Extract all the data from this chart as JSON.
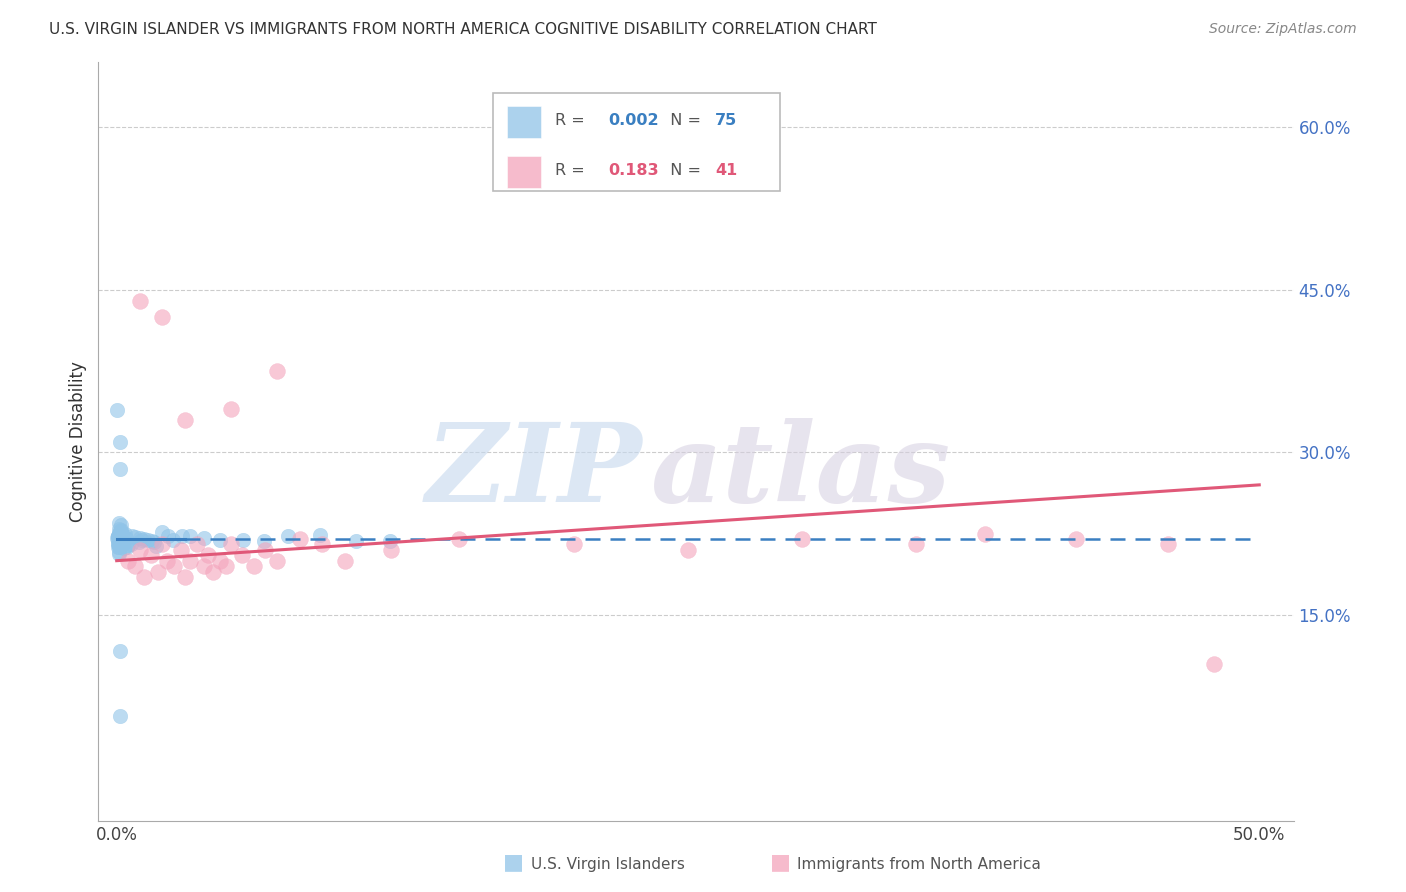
{
  "title": "U.S. VIRGIN ISLANDER VS IMMIGRANTS FROM NORTH AMERICA COGNITIVE DISABILITY CORRELATION CHART",
  "source": "Source: ZipAtlas.com",
  "ylabel": "Cognitive Disability",
  "blue_color": "#90c4e8",
  "pink_color": "#f4a4bc",
  "blue_line_color": "#3a7fc1",
  "pink_line_color": "#e05878",
  "blue_N": 75,
  "pink_N": 41,
  "blue_R": "0.002",
  "pink_R": "0.183",
  "blue_scatter_x": [
    0.001,
    0.001,
    0.001,
    0.001,
    0.001,
    0.001,
    0.001,
    0.001,
    0.001,
    0.001,
    0.001,
    0.001,
    0.001,
    0.001,
    0.001,
    0.001,
    0.001,
    0.001,
    0.001,
    0.001,
    0.001,
    0.001,
    0.001,
    0.001,
    0.001,
    0.001,
    0.001,
    0.001,
    0.001,
    0.001,
    0.002,
    0.002,
    0.002,
    0.002,
    0.002,
    0.002,
    0.002,
    0.002,
    0.003,
    0.003,
    0.003,
    0.004,
    0.004,
    0.004,
    0.005,
    0.005,
    0.006,
    0.007,
    0.008,
    0.009,
    0.01,
    0.011,
    0.012,
    0.013,
    0.015,
    0.017,
    0.018,
    0.02,
    0.022,
    0.025,
    0.028,
    0.032,
    0.038,
    0.045,
    0.055,
    0.065,
    0.075,
    0.09,
    0.105,
    0.12,
    0.001,
    0.001,
    0.001,
    0.001,
    0.001
  ],
  "blue_scatter_y": [
    0.22,
    0.222,
    0.218,
    0.225,
    0.215,
    0.228,
    0.21,
    0.232,
    0.216,
    0.224,
    0.219,
    0.226,
    0.212,
    0.23,
    0.217,
    0.223,
    0.214,
    0.221,
    0.227,
    0.213,
    0.218,
    0.225,
    0.22,
    0.215,
    0.222,
    0.219,
    0.216,
    0.224,
    0.211,
    0.228,
    0.221,
    0.217,
    0.223,
    0.214,
    0.22,
    0.226,
    0.218,
    0.222,
    0.219,
    0.215,
    0.224,
    0.22,
    0.217,
    0.223,
    0.218,
    0.221,
    0.219,
    0.222,
    0.22,
    0.218,
    0.221,
    0.219,
    0.222,
    0.22,
    0.218,
    0.221,
    0.219,
    0.222,
    0.22,
    0.218,
    0.221,
    0.219,
    0.222,
    0.22,
    0.218,
    0.221,
    0.219,
    0.222,
    0.22,
    0.218,
    0.34,
    0.31,
    0.285,
    0.115,
    0.055
  ],
  "pink_scatter_x": [
    0.005,
    0.008,
    0.01,
    0.012,
    0.015,
    0.018,
    0.02,
    0.022,
    0.025,
    0.028,
    0.03,
    0.032,
    0.035,
    0.038,
    0.04,
    0.042,
    0.045,
    0.048,
    0.05,
    0.055,
    0.06,
    0.065,
    0.07,
    0.08,
    0.09,
    0.1,
    0.12,
    0.15,
    0.2,
    0.25,
    0.3,
    0.35,
    0.38,
    0.42,
    0.46,
    0.48,
    0.01,
    0.02,
    0.03,
    0.05,
    0.07
  ],
  "pink_scatter_y": [
    0.2,
    0.195,
    0.21,
    0.185,
    0.205,
    0.19,
    0.215,
    0.2,
    0.195,
    0.21,
    0.185,
    0.2,
    0.215,
    0.195,
    0.205,
    0.19,
    0.2,
    0.195,
    0.215,
    0.205,
    0.195,
    0.21,
    0.2,
    0.22,
    0.215,
    0.2,
    0.21,
    0.22,
    0.215,
    0.21,
    0.22,
    0.215,
    0.225,
    0.22,
    0.215,
    0.105,
    0.44,
    0.425,
    0.33,
    0.34,
    0.375
  ],
  "xlim": [
    -0.008,
    0.515
  ],
  "ylim": [
    -0.04,
    0.66
  ],
  "yticks": [
    0.0,
    0.15,
    0.3,
    0.45,
    0.6
  ],
  "ytick_labels": [
    "",
    "15.0%",
    "30.0%",
    "45.0%",
    "60.0%"
  ],
  "xtick_labels": [
    "0.0%",
    "50.0%"
  ],
  "xtick_positions": [
    0.0,
    0.5
  ]
}
